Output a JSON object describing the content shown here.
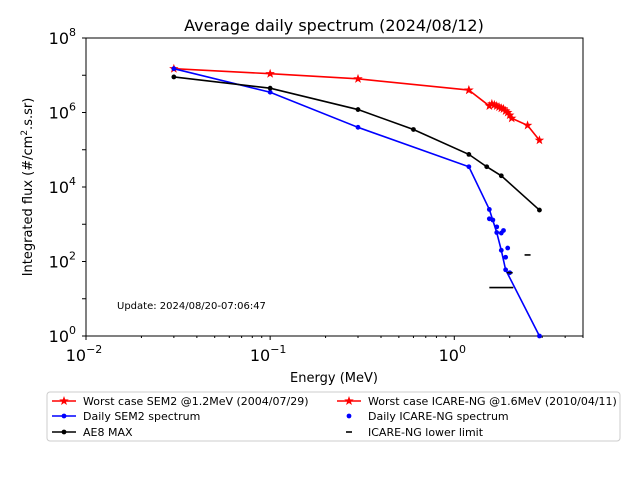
{
  "chart_data": {
    "type": "line",
    "title": "Average daily spectrum (2024/08/12)",
    "xlabel": "Energy (MeV)",
    "ylabel_main": "Integrated flux (#/cm",
    "ylabel_sup": "2",
    "ylabel_tail": ".s.sr)",
    "x_scale": "log",
    "y_scale": "log",
    "xlim": [
      0.01,
      5.0
    ],
    "ylim": [
      1,
      100000000
    ],
    "x_ticks": [
      {
        "value": 0.01,
        "base": "10",
        "exp": "−2"
      },
      {
        "value": 0.1,
        "base": "10",
        "exp": "−1"
      },
      {
        "value": 1,
        "base": "10",
        "exp": "0"
      }
    ],
    "y_ticks": [
      {
        "value": 1,
        "base": "10",
        "exp": "0"
      },
      {
        "value": 100,
        "base": "10",
        "exp": "2"
      },
      {
        "value": 10000,
        "base": "10",
        "exp": "4"
      },
      {
        "value": 1000000,
        "base": "10",
        "exp": "6"
      },
      {
        "value": 100000000,
        "base": "10",
        "exp": "8"
      }
    ],
    "grid": false,
    "annotation": "Update: 2024/08/20-07:06:47",
    "legend_position": "below",
    "series": [
      {
        "name": "Worst case SEM2 @1.2MeV (2004/07/29)",
        "style": "line-star",
        "color": "#ff0000",
        "x": [
          0.03,
          0.1,
          0.3,
          1.2
        ],
        "y": [
          15000000,
          11000000,
          8000000,
          4000000
        ]
      },
      {
        "name": "Worst case ICARE-NG @1.6MeV (2010/04/11)",
        "style": "line-star",
        "color": "#ff0000",
        "x": [
          1.2,
          1.55,
          1.6,
          1.65,
          1.7,
          1.75,
          1.8,
          1.85,
          1.9,
          1.95,
          2.0,
          2.05,
          2.5,
          2.9
        ],
        "y": [
          4000000,
          1500000,
          1700000,
          1600000,
          1500000,
          1400000,
          1300000,
          1250000,
          1100000,
          1000000,
          850000,
          700000,
          450000,
          180000
        ]
      },
      {
        "name": "Daily SEM2 spectrum",
        "style": "line-dot",
        "color": "#0000ff",
        "x": [
          0.03,
          0.1,
          0.3,
          1.2,
          1.55,
          1.7,
          1.8,
          1.9,
          2.9
        ],
        "y": [
          15000000,
          3500000,
          400000,
          35000,
          2500,
          600,
          200,
          60,
          1
        ]
      },
      {
        "name": "Daily ICARE-NG spectrum",
        "style": "dot",
        "color": "#0000ff",
        "x": [
          1.55,
          1.62,
          1.7,
          1.8,
          1.85,
          1.9,
          1.95,
          2.0
        ],
        "y": [
          1400,
          1300,
          850,
          580,
          680,
          130,
          230,
          50
        ]
      },
      {
        "name": "AE8 MAX",
        "style": "line-dot",
        "color": "#000000",
        "x": [
          0.03,
          0.1,
          0.3,
          0.6,
          1.2,
          1.5,
          1.8,
          2.9
        ],
        "y": [
          9000000,
          4500000,
          1200000,
          350000,
          75000,
          35000,
          20000,
          2400
        ]
      },
      {
        "name": "ICARE-NG lower limit",
        "style": "dash",
        "color": "#000000",
        "x": [
          1.55,
          2.0,
          2.5
        ],
        "y": [
          20,
          50,
          150
        ]
      }
    ]
  }
}
